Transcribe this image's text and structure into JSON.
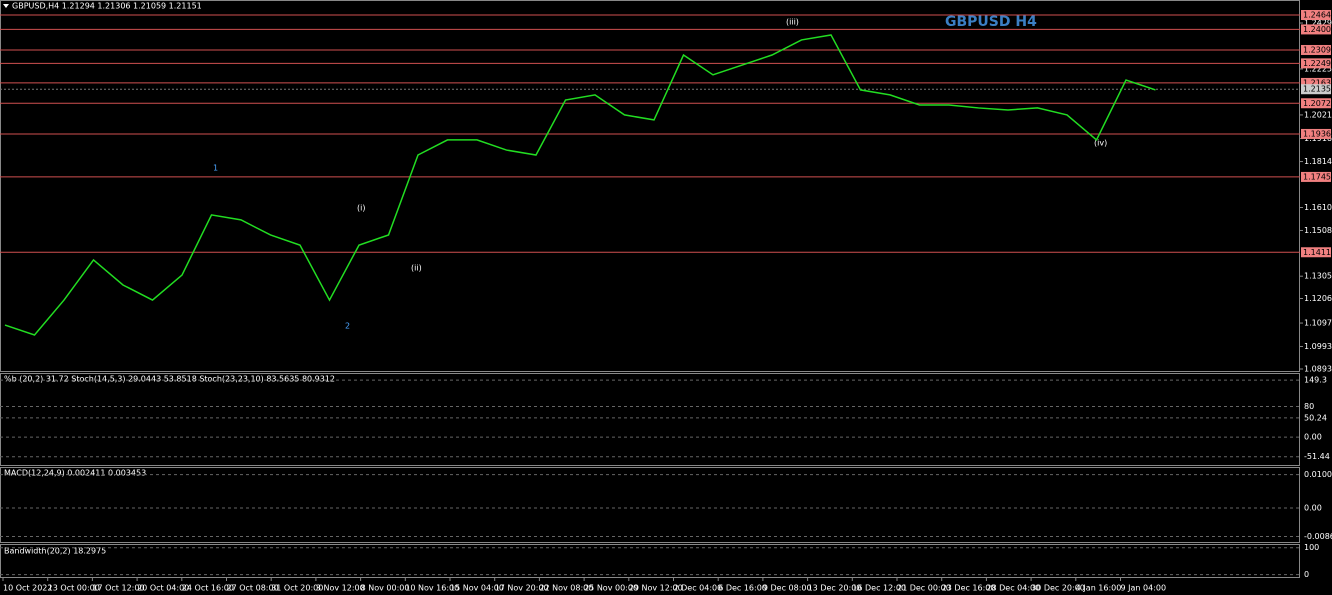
{
  "header": "GBPUSD,H4  1.21294 1.21306 1.21059 1.21151",
  "watermark": "GBPUSD H4",
  "chart": {
    "ylim": [
      1.0893,
      1.24646
    ],
    "yticks": [
      {
        "value": 1.2429,
        "label": "1.24290"
      },
      {
        "value": 1.2225,
        "label": "1.22250"
      },
      {
        "value": 1.2021,
        "label": "1.20210"
      },
      {
        "value": 1.1916,
        "label": "1.19160"
      },
      {
        "value": 1.1814,
        "label": "1.18140"
      },
      {
        "value": 1.161,
        "label": "1.16100"
      },
      {
        "value": 1.1508,
        "label": "1.15080"
      },
      {
        "value": 1.1305,
        "label": "1.13050"
      },
      {
        "value": 1.1206,
        "label": "1.12060"
      },
      {
        "value": 1.1097,
        "label": "1.10970"
      },
      {
        "value": 1.0993,
        "label": "1.09930"
      },
      {
        "value": 1.0893,
        "label": "1.08930"
      }
    ],
    "levels": [
      1.24646,
      1.24006,
      1.23093,
      1.22499,
      {
        "value": 1.2163,
        "label": "1.21630"
      },
      1.20728,
      1.19365,
      1.17457,
      1.14113
    ],
    "current_price": 1.21351,
    "close": [
      1.1088,
      1.1044,
      1.1199,
      1.1377,
      1.1266,
      1.1199,
      1.131,
      1.1577,
      1.1555,
      1.1488,
      1.1443,
      1.1199,
      1.1443,
      1.1488,
      1.1843,
      1.191,
      1.191,
      1.1865,
      1.1843,
      1.2087,
      1.211,
      1.2021,
      1.1999,
      1.2287,
      1.2199,
      1.2243,
      1.2287,
      1.2354,
      1.2376,
      1.2132,
      1.211,
      1.2065,
      1.2065,
      1.2052,
      1.2043,
      1.2052,
      1.2021,
      1.191,
      1.2176,
      1.2132
    ],
    "wave_labels": [
      "1",
      "2",
      "(i)",
      "(ii)",
      "(iii)",
      "(iv)"
    ]
  },
  "time_labels": [
    "10 Oct 2022",
    "13 Oct 00:00",
    "17 Oct 12:00",
    "20 Oct 04:00",
    "24 Oct 16:00",
    "27 Oct 08:00",
    "31 Oct 20:00",
    "3 Nov 12:00",
    "8 Nov 00:00",
    "10 Nov 16:00",
    "15 Nov 04:00",
    "17 Nov 20:00",
    "22 Nov 08:00",
    "25 Nov 00:00",
    "29 Nov 12:00",
    "2 Dec 04:00",
    "6 Dec 16:00",
    "9 Dec 08:00",
    "13 Dec 20:00",
    "16 Dec 12:00",
    "21 Dec 00:00",
    "23 Dec 16:00",
    "28 Dec 04:00",
    "30 Dec 20:00",
    "4 Jan 16:00",
    "9 Jan 04:00"
  ],
  "stoch": {
    "label": "%b (20,2) 31.72  Stoch(14,5,3) 29.0443 53.8518  Stoch(23,23,10) 83.5635 80.9312",
    "ylim": [
      -60,
      160
    ],
    "yticks": [
      149.3,
      80,
      50.24,
      {
        "value": 0,
        "label": "0.00"
      },
      -51.44
    ]
  },
  "macd": {
    "label": "MACD(12,24,9) 0.002411 0.003453",
    "ylim": [
      -0.01,
      0.0115
    ],
    "yticks": [
      0.010093,
      {
        "value": 0,
        "label": "0.00"
      },
      -0.008644
    ]
  },
  "bandwidth": {
    "label": "Bandwidth(20,2) 18.2975",
    "ylim": [
      -5,
      110
    ],
    "yticks": [
      100,
      0
    ]
  }
}
